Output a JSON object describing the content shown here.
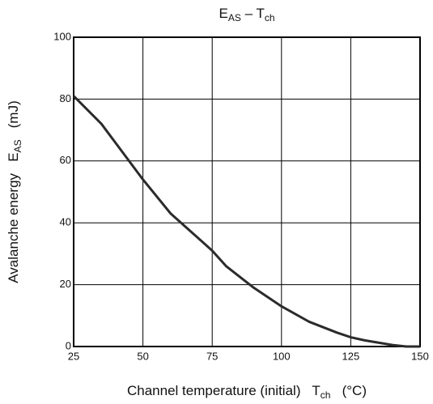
{
  "chart_data": {
    "type": "line",
    "title": [
      "E",
      "AS",
      " – T",
      "ch"
    ],
    "xlabel": [
      "Channel temperature (initial)   T",
      "ch",
      "   (°C)"
    ],
    "ylabel": [
      "Avalanche energy   E",
      "AS",
      "   (mJ)"
    ],
    "x": [
      25,
      35,
      40,
      50,
      60,
      75,
      80,
      90,
      100,
      110,
      120,
      125,
      130,
      140,
      145,
      150
    ],
    "series": [
      {
        "color": "#2b2b2b",
        "values": [
          81,
          72,
          66,
          54,
          43,
          31,
          26,
          19,
          13,
          8,
          4.5,
          3,
          2,
          0.5,
          0,
          0
        ]
      }
    ],
    "xlim": [
      25,
      150
    ],
    "ylim": [
      0,
      100
    ],
    "xticks": [
      25,
      50,
      75,
      100,
      125,
      150
    ],
    "yticks": [
      0,
      20,
      40,
      60,
      80,
      100
    ],
    "grid": true
  }
}
